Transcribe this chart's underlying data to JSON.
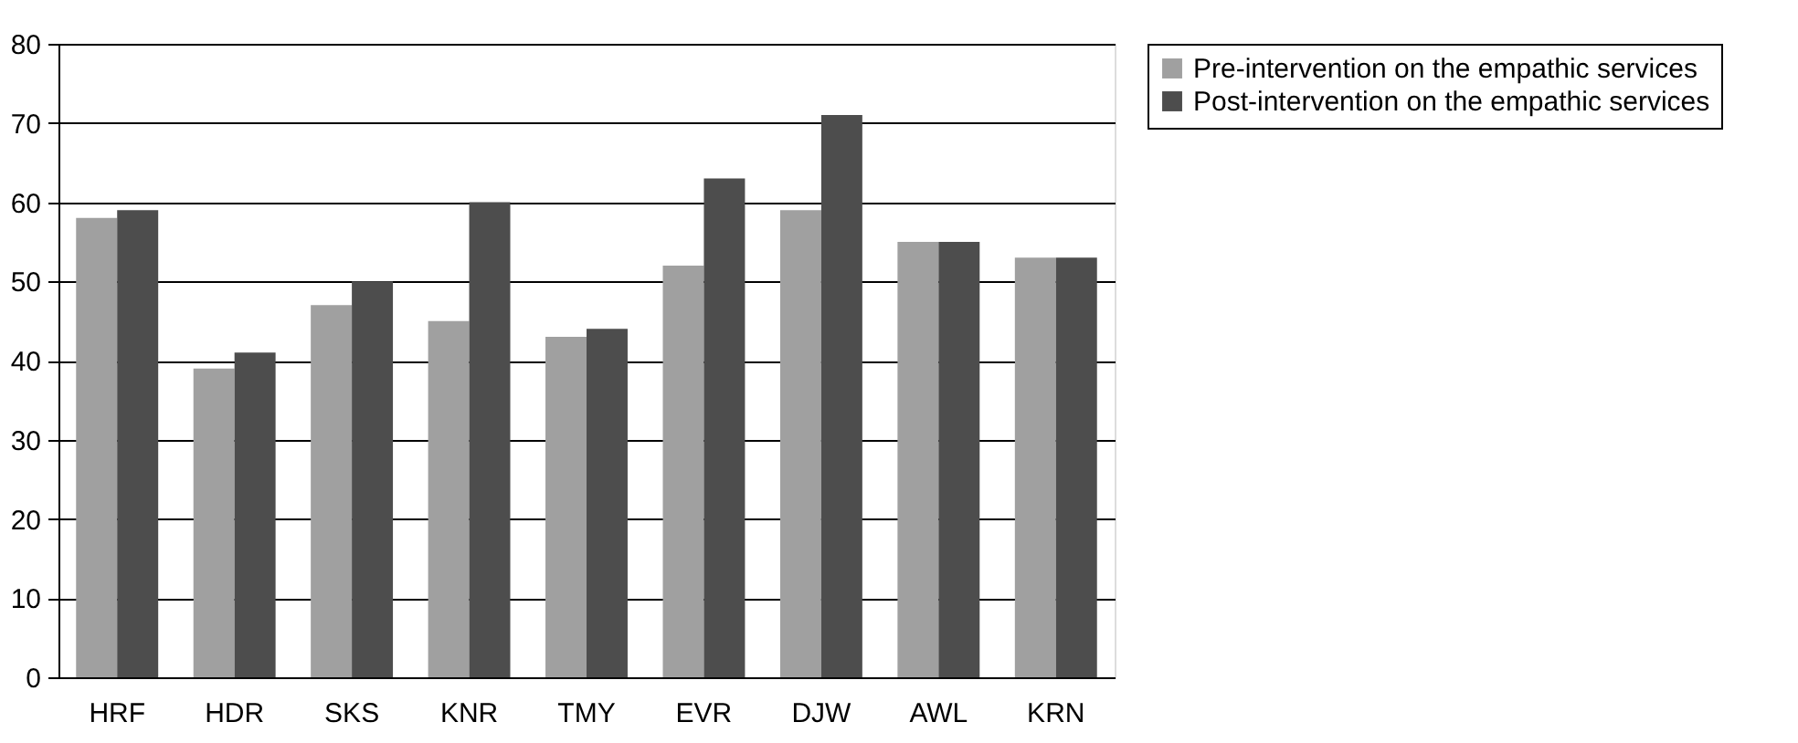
{
  "chart_data": {
    "type": "bar",
    "categories": [
      "HRF",
      "HDR",
      "SKS",
      "KNR",
      "TMY",
      "EVR",
      "DJW",
      "AWL",
      "KRN"
    ],
    "series": [
      {
        "name": "Pre-intervention on the empathic services",
        "color": "#a0a0a0",
        "values": [
          58,
          39,
          47,
          45,
          43,
          52,
          59,
          55,
          53
        ]
      },
      {
        "name": "Post-intervention on the empathic services",
        "color": "#4d4d4d",
        "values": [
          59,
          41,
          50,
          60,
          44,
          63,
          71,
          55,
          53
        ]
      }
    ],
    "ylim": [
      0,
      80
    ],
    "yticks": [
      0,
      10,
      20,
      30,
      40,
      50,
      60,
      70,
      80
    ],
    "grid": "y",
    "legend": "right"
  }
}
